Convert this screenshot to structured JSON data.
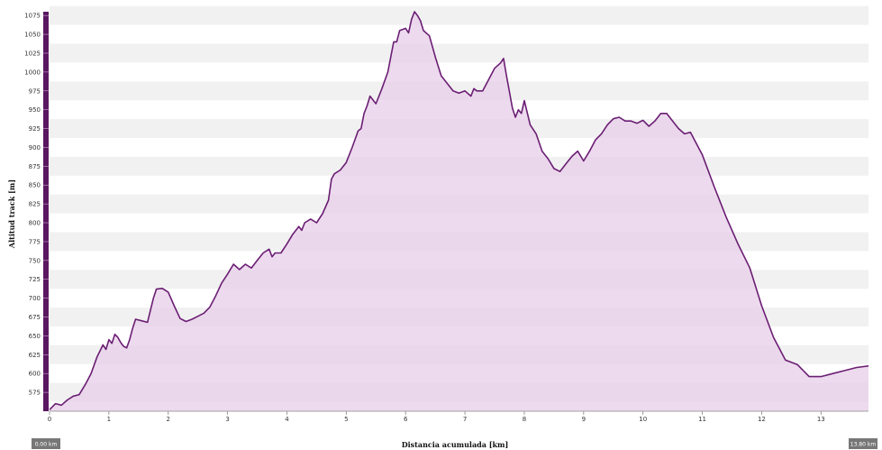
{
  "chart_data": {
    "type": "area",
    "xlabel": "Distancia acumulada [km]",
    "ylabel": "Altitud track [m]",
    "xlim": [
      0,
      13.8
    ],
    "ylim": [
      550,
      1080
    ],
    "x_ticks": [
      "0",
      "1",
      "2",
      "3",
      "4",
      "5",
      "6",
      "7",
      "8",
      "9",
      "10",
      "11",
      "12",
      "13"
    ],
    "y_ticks": [
      "575",
      "600",
      "625",
      "650",
      "675",
      "700",
      "725",
      "750",
      "775",
      "800",
      "825",
      "850",
      "875",
      "900",
      "925",
      "950",
      "975",
      "1000",
      "1025",
      "1050",
      "1075"
    ],
    "grid": true,
    "colors": {
      "line": "#6b1e74",
      "fill": "#e7cde8",
      "band": "#f1f1f1",
      "handle": "#777777",
      "axis_bar": "#5a1660"
    },
    "range_handles": {
      "left": "0.00 km",
      "right": "13.80 km"
    },
    "series": [
      {
        "x": [
          0,
          0.1,
          0.2,
          0.3,
          0.4,
          0.5,
          0.6,
          0.7,
          0.8,
          0.9,
          0.95,
          1.0,
          1.05,
          1.1,
          1.15,
          1.2,
          1.25,
          1.3,
          1.35,
          1.4,
          1.45,
          1.55,
          1.65,
          1.75,
          1.8,
          1.9,
          2.0,
          2.1,
          2.2,
          2.3,
          2.4,
          2.5,
          2.6,
          2.7,
          2.8,
          2.9,
          3.0,
          3.1,
          3.2,
          3.3,
          3.4,
          3.5,
          3.6,
          3.7,
          3.75,
          3.8,
          3.9,
          4.0,
          4.1,
          4.2,
          4.25,
          4.3,
          4.4,
          4.5,
          4.6,
          4.7,
          4.75,
          4.8,
          4.9,
          5.0,
          5.1,
          5.2,
          5.25,
          5.3,
          5.35,
          5.4,
          5.5,
          5.6,
          5.7,
          5.8,
          5.85,
          5.9,
          6.0,
          6.05,
          6.1,
          6.15,
          6.2,
          6.25,
          6.3,
          6.4,
          6.5,
          6.6,
          6.7,
          6.8,
          6.9,
          7.0,
          7.1,
          7.15,
          7.2,
          7.3,
          7.4,
          7.5,
          7.6,
          7.65,
          7.7,
          7.8,
          7.85,
          7.9,
          7.95,
          8.0,
          8.1,
          8.2,
          8.3,
          8.4,
          8.5,
          8.6,
          8.7,
          8.8,
          8.9,
          9.0,
          9.1,
          9.2,
          9.3,
          9.4,
          9.5,
          9.6,
          9.7,
          9.8,
          9.9,
          10.0,
          10.1,
          10.2,
          10.3,
          10.4,
          10.5,
          10.6,
          10.7,
          10.8,
          10.9,
          11.0,
          11.2,
          11.4,
          11.6,
          11.8,
          12.0,
          12.2,
          12.4,
          12.6,
          12.8,
          13.0,
          13.2,
          13.4,
          13.6,
          13.8
        ],
        "y": [
          552,
          560,
          558,
          565,
          570,
          572,
          585,
          600,
          622,
          638,
          632,
          645,
          640,
          652,
          648,
          641,
          636,
          634,
          645,
          660,
          672,
          670,
          668,
          700,
          712,
          713,
          708,
          690,
          673,
          669,
          672,
          676,
          680,
          688,
          703,
          720,
          732,
          745,
          738,
          745,
          740,
          750,
          760,
          765,
          755,
          760,
          760,
          772,
          785,
          795,
          790,
          800,
          805,
          800,
          812,
          830,
          858,
          865,
          870,
          880,
          900,
          922,
          925,
          945,
          955,
          968,
          958,
          978,
          1000,
          1040,
          1040,
          1055,
          1058,
          1052,
          1070,
          1080,
          1075,
          1068,
          1055,
          1048,
          1020,
          995,
          985,
          975,
          972,
          975,
          968,
          978,
          975,
          975,
          990,
          1005,
          1012,
          1018,
          995,
          952,
          940,
          950,
          945,
          962,
          930,
          918,
          895,
          885,
          872,
          868,
          878,
          888,
          895,
          882,
          895,
          910,
          918,
          930,
          938,
          940,
          935,
          935,
          932,
          936,
          928,
          935,
          945,
          945,
          935,
          925,
          918,
          920,
          905,
          890,
          848,
          808,
          772,
          740,
          690,
          648,
          618,
          612,
          596,
          596,
          600,
          604,
          608,
          610
        ]
      }
    ]
  }
}
